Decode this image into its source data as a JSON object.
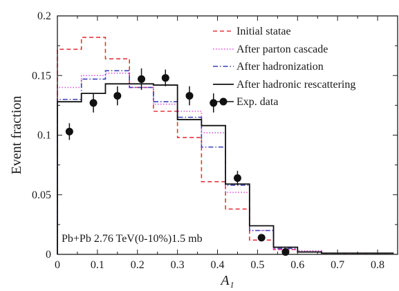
{
  "chart_data": {
    "type": "step",
    "xlabel": "A₁",
    "ylabel": "Event fraction",
    "xlim": [
      0,
      0.85
    ],
    "ylim": [
      0,
      0.2
    ],
    "x_ticks": [
      "0",
      "0.1",
      "0.2",
      "0.3",
      "0.4",
      "0.5",
      "0.6",
      "0.7",
      "0.8"
    ],
    "y_ticks": [
      "0",
      "0.05",
      "0.1",
      "0.15",
      "0.2"
    ],
    "grid": false,
    "legend_position": "top-right",
    "bin_edges": [
      0,
      0.06,
      0.12,
      0.18,
      0.24,
      0.3,
      0.36,
      0.42,
      0.48,
      0.54,
      0.6,
      0.66,
      0.72,
      0.78,
      0.84
    ],
    "series": [
      {
        "name": "Initial statae",
        "color": "#e8333d",
        "style": "dashed",
        "values": [
          0.172,
          0.182,
          0.164,
          0.14,
          0.12,
          0.098,
          0.061,
          0.038,
          0.012,
          0.004,
          0.002,
          0.001,
          0.001,
          0.001
        ]
      },
      {
        "name": "After parton cascade",
        "color": "#d94fd9",
        "style": "dotted",
        "values": [
          0.14,
          0.15,
          0.152,
          0.14,
          0.126,
          0.12,
          0.102,
          0.052,
          0.02,
          0.004,
          0.003,
          0.001,
          0.001,
          0.001
        ]
      },
      {
        "name": "After hadronization",
        "color": "#3a3fb8",
        "style": "dashdot",
        "values": [
          0.13,
          0.147,
          0.154,
          0.14,
          0.128,
          0.115,
          0.09,
          0.058,
          0.02,
          0.005,
          0.002,
          0.001,
          0.001,
          0.001
        ]
      },
      {
        "name": "After hadronic rescattering",
        "color": "#111111",
        "style": "solid",
        "values": [
          0.128,
          0.135,
          0.143,
          0.143,
          0.142,
          0.113,
          0.108,
          0.059,
          0.024,
          0.006,
          0.002,
          0.001,
          0.001,
          0.001
        ]
      }
    ],
    "exp_data": {
      "name": "Exp. data",
      "color": "#111111",
      "points": [
        {
          "x": 0.03,
          "y": 0.103,
          "err": 0.007
        },
        {
          "x": 0.09,
          "y": 0.127,
          "err": 0.008
        },
        {
          "x": 0.15,
          "y": 0.133,
          "err": 0.008
        },
        {
          "x": 0.21,
          "y": 0.147,
          "err": 0.009
        },
        {
          "x": 0.27,
          "y": 0.148,
          "err": 0.007
        },
        {
          "x": 0.33,
          "y": 0.133,
          "err": 0.008
        },
        {
          "x": 0.39,
          "y": 0.127,
          "err": 0.008
        },
        {
          "x": 0.45,
          "y": 0.064,
          "err": 0.006
        },
        {
          "x": 0.51,
          "y": 0.014,
          "err": 0.002
        },
        {
          "x": 0.57,
          "y": 0.002,
          "err": 0.001
        }
      ]
    },
    "annotation": "Pb+Pb 2.76 TeV(0-10%)1.5 mb"
  }
}
